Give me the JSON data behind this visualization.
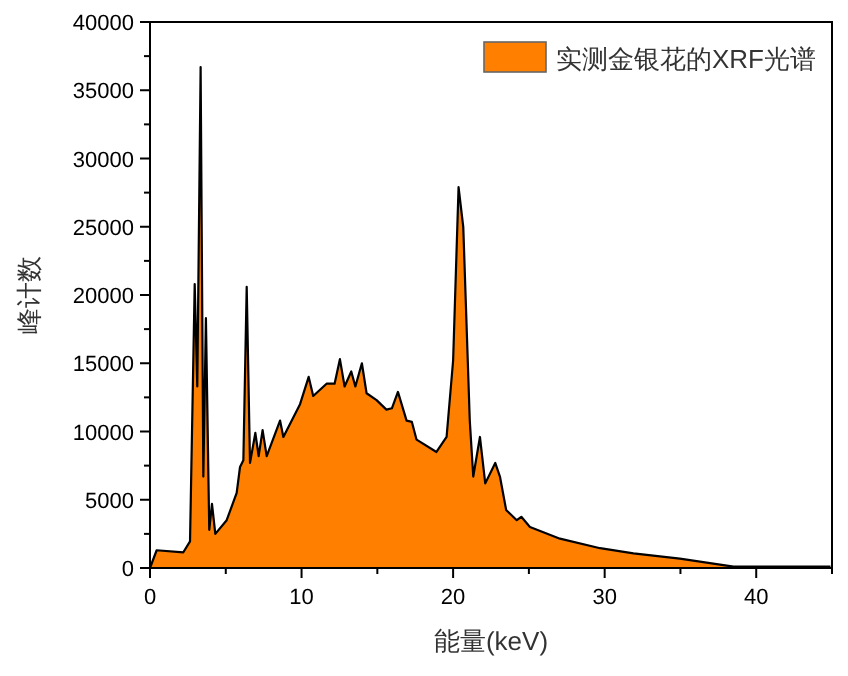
{
  "chart_data": {
    "type": "area",
    "xlabel": "能量(keV)",
    "ylabel": "峰计数",
    "x": [
      0,
      0.44,
      2.2,
      2.64,
      2.95,
      3.12,
      3.34,
      3.52,
      3.69,
      3.91,
      4.09,
      4.31,
      5.06,
      5.72,
      5.94,
      6.16,
      6.38,
      6.6,
      6.95,
      7.17,
      7.43,
      7.7,
      8.58,
      8.8,
      9.9,
      10.47,
      10.77,
      11.65,
      12.18,
      12.53,
      12.84,
      13.28,
      13.55,
      13.98,
      14.29,
      14.95,
      15.6,
      15.96,
      16.36,
      16.93,
      17.28,
      17.59,
      18.9,
      19.57,
      20.0,
      20.36,
      20.67,
      21.1,
      21.33,
      21.77,
      22.12,
      22.78,
      23.09,
      23.5,
      24.2,
      24.5,
      25.07,
      27.05,
      29.7,
      31.9,
      34.96,
      38.5,
      44.9
    ],
    "series": [
      {
        "name": "实测金银花的XRF光谱",
        "color": "#ff8000",
        "values": [
          0,
          1300,
          1150,
          1950,
          20800,
          13300,
          36700,
          6700,
          18300,
          2800,
          4700,
          2500,
          3500,
          5500,
          7400,
          7900,
          20600,
          7700,
          9900,
          8200,
          10100,
          8200,
          10800,
          9600,
          12000,
          14000,
          12600,
          13500,
          13500,
          15300,
          13300,
          14400,
          13300,
          15000,
          12800,
          12300,
          11600,
          11700,
          12900,
          10800,
          10700,
          9400,
          8500,
          9600,
          15200,
          27900,
          25000,
          10800,
          6700,
          9600,
          6200,
          7700,
          6700,
          4250,
          3500,
          3750,
          3000,
          2150,
          1450,
          1070,
          690,
          100,
          100
        ]
      }
    ],
    "xlim": [
      0,
      45
    ],
    "xticks": [
      0,
      10,
      20,
      30,
      40
    ],
    "ylim": [
      0,
      40000
    ],
    "yticks": [
      0,
      5000,
      10000,
      15000,
      20000,
      25000,
      30000,
      35000,
      40000
    ],
    "legend": "top right",
    "grid": false
  }
}
